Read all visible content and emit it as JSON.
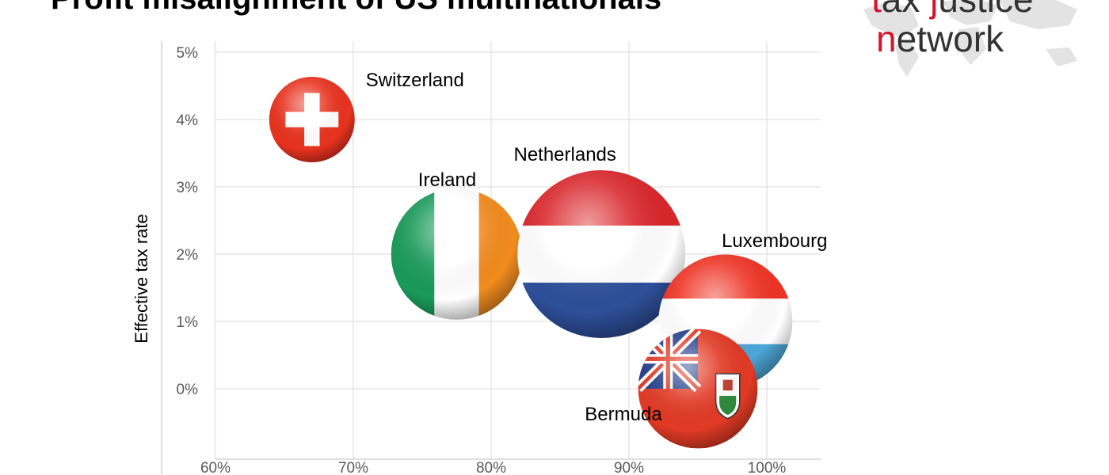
{
  "slide": {
    "title": "Profit misalignment of US multinationals"
  },
  "logo": {
    "line1_prefix": "",
    "line1_red_1": "t",
    "line1_mid": "ax ",
    "line1_red_2": "j",
    "line1_suffix": "ustice",
    "line2_red": "n",
    "line2_suffix": "etwork"
  },
  "colors": {
    "grid": "#d9d9d9",
    "tick_text": "#595959",
    "logo_red": "#d4142a"
  },
  "chart_data": {
    "type": "bubble",
    "title": "",
    "xlabel": "",
    "ylabel": "Effective tax rate",
    "xlim": [
      0.6,
      1.0
    ],
    "ylim": [
      -0.01,
      0.05
    ],
    "x_ticks": [
      0.6,
      0.7,
      0.8,
      0.9,
      1.0
    ],
    "x_tick_labels": [
      "60%",
      "70%",
      "80%",
      "90%",
      "100%"
    ],
    "y_ticks": [
      0.0,
      0.01,
      0.02,
      0.03,
      0.04,
      0.05
    ],
    "y_tick_labels": [
      "0%",
      "1%",
      "2%",
      "3%",
      "4%",
      "5%"
    ],
    "grid": true,
    "series": [
      {
        "name": "Switzerland",
        "x": 0.67,
        "y": 0.04,
        "size": 1.0,
        "flag": "switzerland-flag"
      },
      {
        "name": "Ireland",
        "x": 0.775,
        "y": 0.02,
        "size": 2.35,
        "flag": "ireland-flag"
      },
      {
        "name": "Netherlands",
        "x": 0.88,
        "y": 0.02,
        "size": 3.85,
        "flag": "netherlands-flag"
      },
      {
        "name": "Luxembourg",
        "x": 0.97,
        "y": 0.01,
        "size": 2.45,
        "flag": "luxembourg-flag"
      },
      {
        "name": "Bermuda",
        "x": 0.95,
        "y": 0.0,
        "size": 1.95,
        "flag": "bermuda-flag"
      }
    ]
  }
}
